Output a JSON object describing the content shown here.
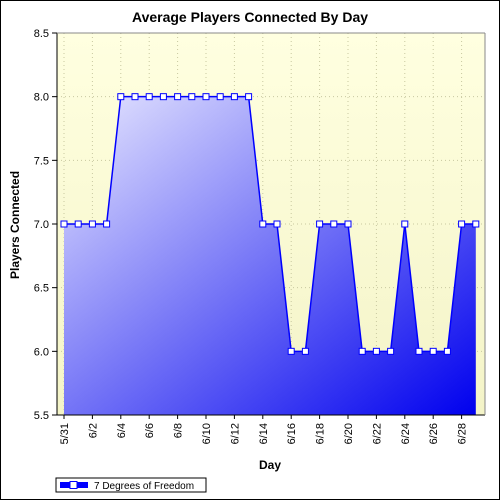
{
  "chart_data": {
    "type": "area",
    "title": "Average Players Connected By Day",
    "xlabel": "Day",
    "ylabel": "Players Connected",
    "ylim": [
      5.5,
      8.5
    ],
    "yticks": [
      "5.5",
      "6.0",
      "6.5",
      "7.0",
      "7.5",
      "8.0",
      "8.5"
    ],
    "x_tick_labels": [
      "5/31",
      "6/2",
      "6/4",
      "6/6",
      "6/8",
      "6/10",
      "6/12",
      "6/14",
      "6/16",
      "6/18",
      "6/20",
      "6/22",
      "6/24",
      "6/26",
      "6/28"
    ],
    "x": [
      "5/31",
      "6/1",
      "6/2",
      "6/3",
      "6/4",
      "6/5",
      "6/6",
      "6/7",
      "6/8",
      "6/9",
      "6/10",
      "6/11",
      "6/12",
      "6/13",
      "6/14",
      "6/15",
      "6/16",
      "6/17",
      "6/18",
      "6/19",
      "6/20",
      "6/21",
      "6/22",
      "6/23",
      "6/24",
      "6/25",
      "6/26",
      "6/27",
      "6/28",
      "6/29"
    ],
    "series": [
      {
        "name": "7 Degrees of Freedom",
        "values": [
          7,
          7,
          7,
          7,
          8,
          8,
          8,
          8,
          8,
          8,
          8,
          8,
          8,
          8,
          7,
          7,
          6,
          6,
          7,
          7,
          7,
          6,
          6,
          6,
          7,
          6,
          6,
          6,
          7,
          7
        ]
      }
    ],
    "grid": true,
    "legend_position": "bottom-left",
    "colors": {
      "plot_bg_top": "#ffffe0",
      "plot_bg_bottom": "#f4f4c8",
      "area_light": "#e8e8ff",
      "area_dark": "#0000ee",
      "line": "#0000ff",
      "marker_fill": "#ffffff"
    }
  }
}
